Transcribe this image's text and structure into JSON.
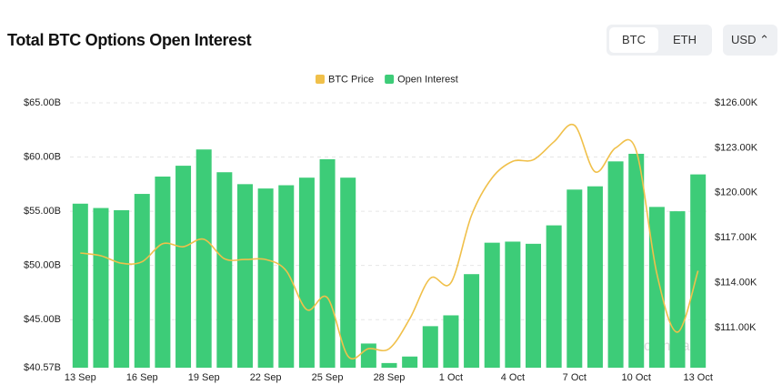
{
  "header": {
    "title": "Total BTC Options Open Interest",
    "coin_buttons": [
      "BTC",
      "ETH"
    ],
    "currency": "USD ⌃"
  },
  "chart_data": {
    "type": "bar-line",
    "categories": [
      "13 Sep",
      null,
      null,
      "16 Sep",
      null,
      null,
      "19 Sep",
      null,
      null,
      "22 Sep",
      null,
      null,
      "25 Sep",
      null,
      null,
      "28 Sep",
      null,
      null,
      "1 Oct",
      null,
      null,
      "4 Oct",
      null,
      null,
      "7 Oct",
      null,
      null,
      "10 Oct",
      null,
      null,
      "13 Oct"
    ],
    "series": [
      {
        "name": "BTC Price",
        "color": "#f0c04a",
        "axis": "y2",
        "type": "line",
        "values": [
          115.98,
          115.8,
          115.3,
          115.4,
          116.6,
          116.4,
          116.9,
          115.6,
          115.55,
          115.55,
          114.8,
          112.2,
          113.0,
          109.1,
          109.6,
          109.6,
          111.6,
          114.3,
          114.0,
          118.5,
          121.0,
          122.1,
          122.2,
          123.4,
          124.5,
          121.4,
          123.0,
          122.8,
          114.6,
          110.7,
          114.8
        ]
      },
      {
        "name": "Open Interest",
        "color": "#3dcc78",
        "type": "bar",
        "values": [
          55.7,
          55.3,
          55.1,
          56.6,
          58.2,
          59.2,
          60.7,
          58.6,
          57.5,
          57.1,
          57.4,
          58.1,
          59.8,
          58.1,
          42.8,
          41.0,
          41.6,
          44.4,
          45.4,
          49.2,
          52.1,
          52.2,
          52.0,
          53.7,
          57.0,
          57.3,
          59.6,
          60.3,
          55.4,
          55.0,
          58.4
        ]
      }
    ],
    "ylim": [
      40.57,
      65
    ],
    "yticks": [
      {
        "value": 40.57,
        "label": "$40.57B"
      },
      {
        "value": 45,
        "label": "$45.00B"
      },
      {
        "value": 50,
        "label": "$50.00B"
      },
      {
        "value": 55,
        "label": "$55.00B"
      },
      {
        "value": 60,
        "label": "$60.00B"
      },
      {
        "value": 65,
        "label": "$65.00B"
      }
    ],
    "y2lim": [
      108.33,
      126
    ],
    "y2ticks": [
      {
        "value": 111,
        "label": "$111.00K"
      },
      {
        "value": 114,
        "label": "$114.00K"
      },
      {
        "value": 117,
        "label": "$117.00K"
      },
      {
        "value": 120,
        "label": "$120.00K"
      },
      {
        "value": 123,
        "label": "$123.00K"
      },
      {
        "value": 126,
        "label": "$126.00K"
      }
    ],
    "grid": true,
    "watermark": "coinglass"
  }
}
